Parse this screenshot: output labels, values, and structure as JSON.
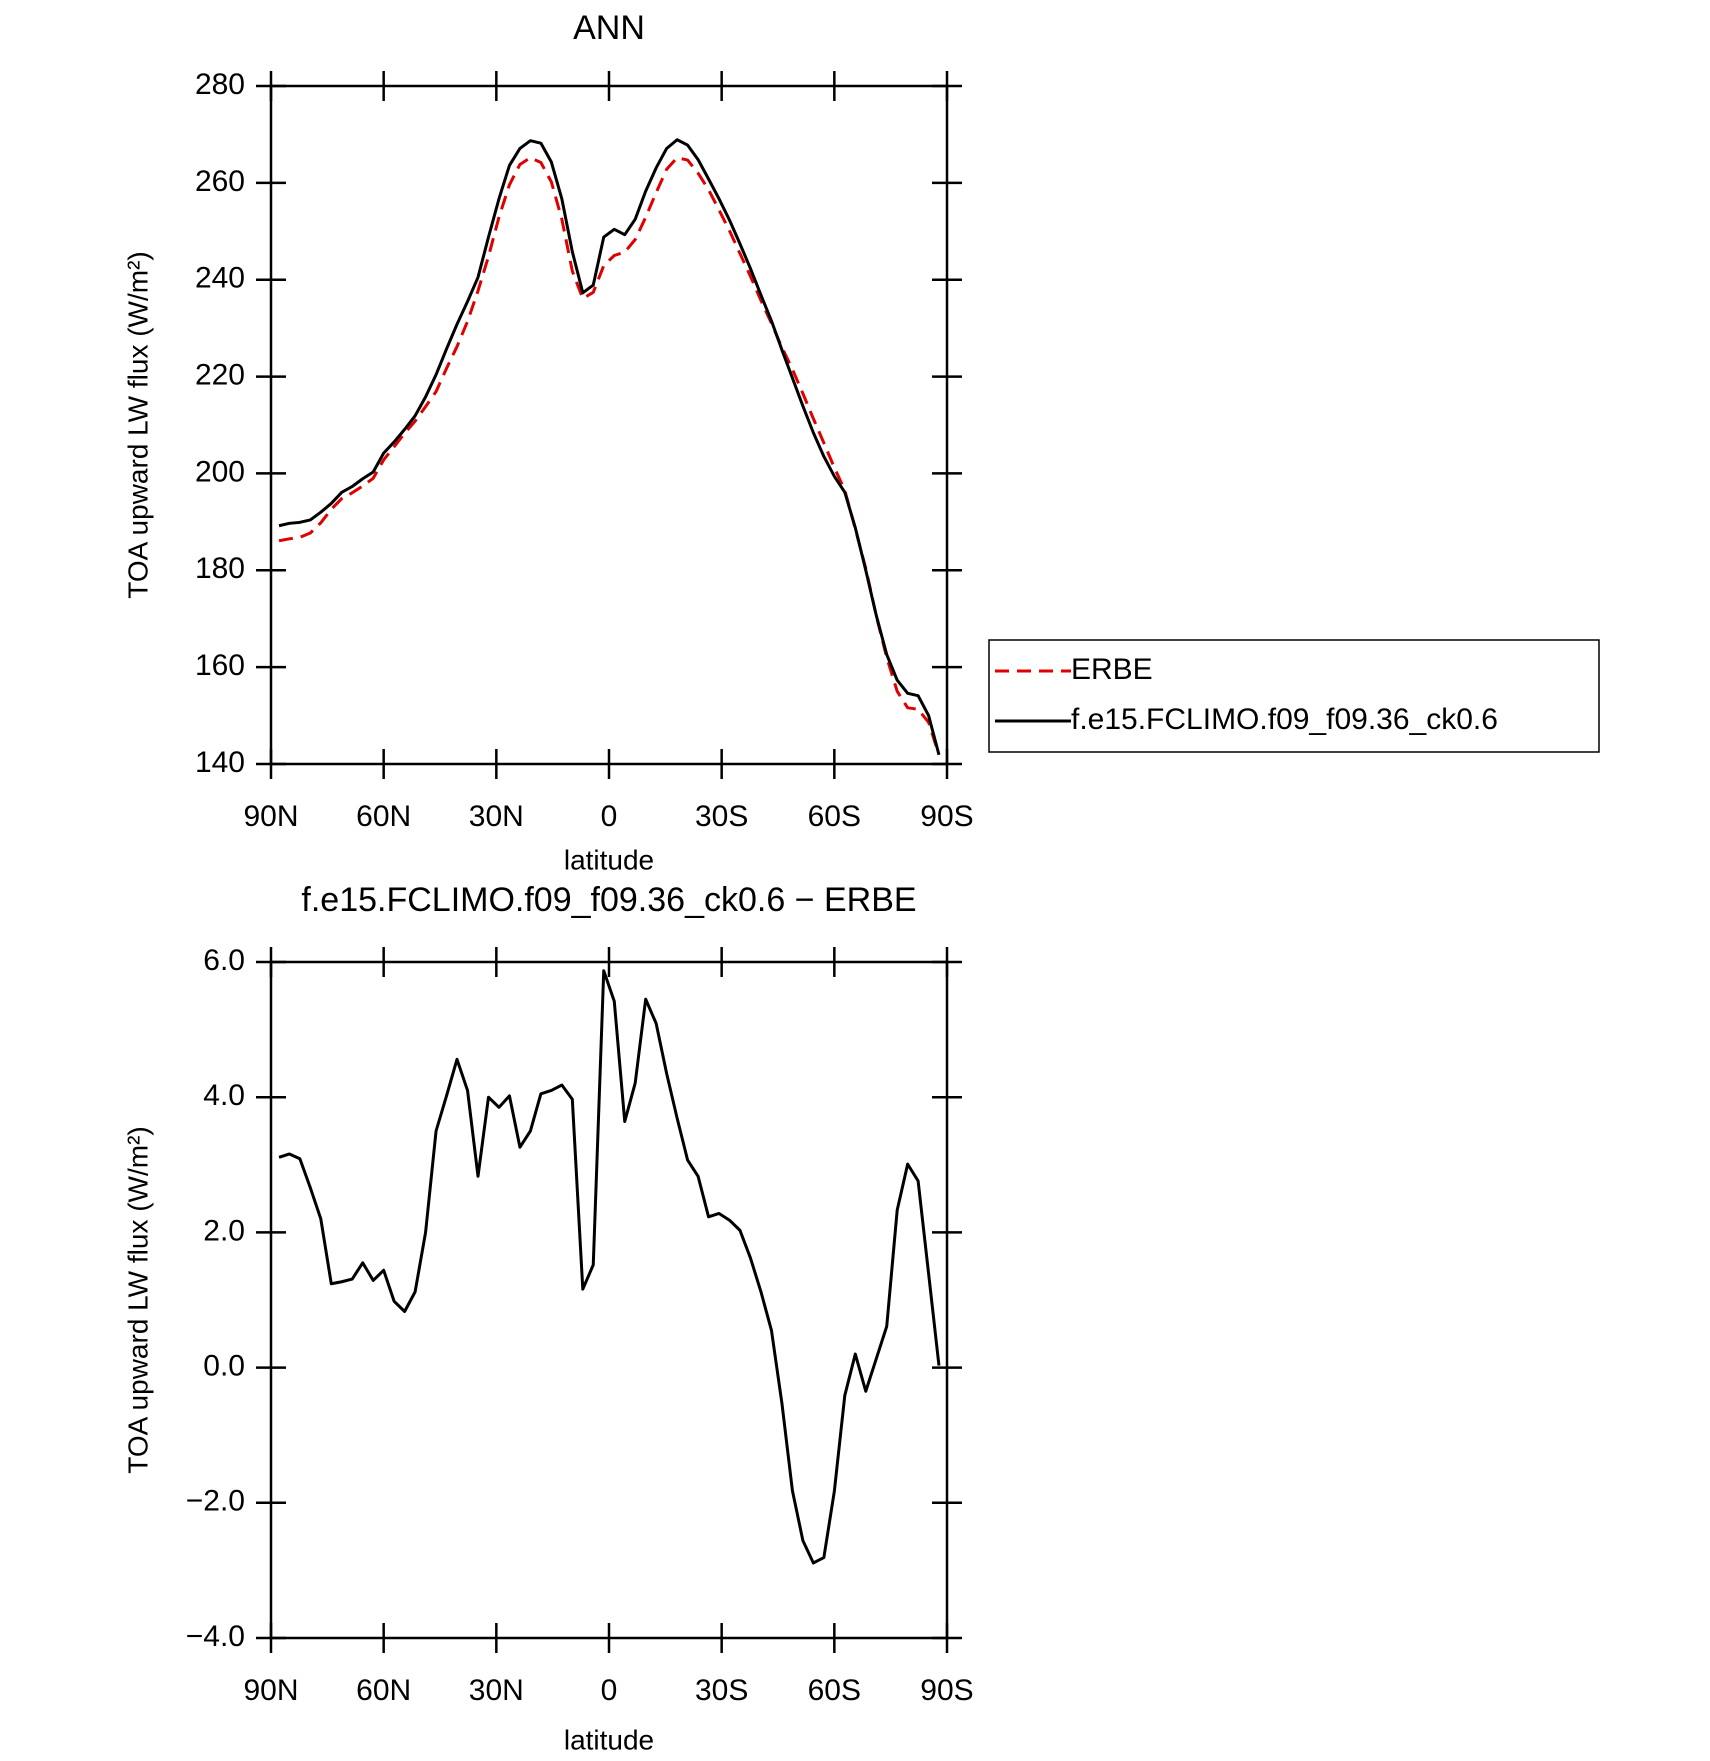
{
  "chart_data": [
    {
      "type": "line",
      "title": "ANN",
      "xlabel": "latitude",
      "ylabel": "TOA upward LW flux (W/m²)",
      "x": [
        87.86,
        85.1,
        82.31,
        79.53,
        76.74,
        73.95,
        71.16,
        68.37,
        65.58,
        62.79,
        60.0,
        57.21,
        54.42,
        51.63,
        48.84,
        46.05,
        43.26,
        40.47,
        37.67,
        34.88,
        32.09,
        29.3,
        26.51,
        23.72,
        20.93,
        18.14,
        15.35,
        12.56,
        9.77,
        6.98,
        4.19,
        1.4,
        -1.4,
        -4.19,
        -6.98,
        -9.77,
        -12.56,
        -15.35,
        -18.14,
        -20.93,
        -23.72,
        -26.51,
        -29.3,
        -32.09,
        -34.88,
        -37.67,
        -40.47,
        -43.26,
        -46.05,
        -48.84,
        -51.63,
        -54.42,
        -57.21,
        -60.0,
        -62.79,
        -65.58,
        -68.37,
        -71.16,
        -73.95,
        -76.74,
        -79.53,
        -82.31,
        -85.1,
        -87.86
      ],
      "series": [
        {
          "name": "ERBE",
          "color": "#e00000",
          "line_style": "dashed",
          "values": [
            186.1,
            186.5,
            186.8,
            187.7,
            189.8,
            192.6,
            194.8,
            196.0,
            197.4,
            199.0,
            202.8,
            205.5,
            208.3,
            210.8,
            213.8,
            216.9,
            221.7,
            226.2,
            231.4,
            237.7,
            244.8,
            252.9,
            259.6,
            263.8,
            265.2,
            264.2,
            260.2,
            252.5,
            241.8,
            236.1,
            237.4,
            242.9,
            245.0,
            245.7,
            248.3,
            252.9,
            258.0,
            262.8,
            265.2,
            264.7,
            262.0,
            258.6,
            254.4,
            250.1,
            245.4,
            240.7,
            235.7,
            231.0,
            226.0,
            221.5,
            216.5,
            211.3,
            206.3,
            201.2,
            196.5,
            188.6,
            180.4,
            170.6,
            162.0,
            155.0,
            151.6,
            151.3,
            148.6,
            141.9
          ]
        },
        {
          "name": "f.e15.FCLIMO.f09_f09.36_ck0.6",
          "color": "#000000",
          "line_style": "solid",
          "values": [
            189.2,
            189.7,
            189.9,
            190.4,
            192.0,
            193.8,
            196.1,
            197.3,
            198.9,
            200.3,
            204.2,
            206.5,
            209.1,
            211.9,
            215.8,
            220.4,
            225.7,
            230.8,
            235.5,
            240.5,
            248.8,
            256.7,
            263.6,
            267.1,
            268.7,
            268.2,
            264.3,
            256.7,
            245.8,
            237.3,
            238.9,
            248.8,
            250.4,
            249.3,
            252.5,
            258.3,
            263.1,
            267.1,
            268.9,
            267.8,
            264.8,
            260.8,
            256.7,
            252.3,
            247.4,
            242.3,
            236.8,
            231.5,
            225.5,
            219.7,
            213.9,
            208.4,
            203.5,
            199.4,
            196.1,
            188.8,
            180.0,
            170.7,
            162.6,
            157.3,
            154.6,
            154.1,
            150.0,
            141.9
          ]
        }
      ],
      "xlim": [
        90,
        -90
      ],
      "xticks": [
        {
          "value": 90,
          "label": "90N"
        },
        {
          "value": 60,
          "label": "60N"
        },
        {
          "value": 30,
          "label": "30N"
        },
        0,
        {
          "value": -30,
          "label": "30S"
        },
        {
          "value": -60,
          "label": "60S"
        },
        {
          "value": -90,
          "label": "90S"
        }
      ],
      "ylim": [
        140,
        280
      ],
      "yticks": [
        140,
        160,
        180,
        200,
        220,
        240,
        260,
        280
      ],
      "legend": "right"
    },
    {
      "type": "line",
      "title": "f.e15.FCLIMO.f09_f09.36_ck0.6 − ERBE",
      "xlabel": "latitude",
      "ylabel": "TOA upward LW flux (W/m²)",
      "x": [
        87.86,
        85.1,
        82.31,
        79.53,
        76.74,
        73.95,
        71.16,
        68.37,
        65.58,
        62.79,
        60.0,
        57.21,
        54.42,
        51.63,
        48.84,
        46.05,
        43.26,
        40.47,
        37.67,
        34.88,
        32.09,
        29.3,
        26.51,
        23.72,
        20.93,
        18.14,
        15.35,
        12.56,
        9.77,
        6.98,
        4.19,
        1.4,
        -1.4,
        -4.19,
        -6.98,
        -9.77,
        -12.56,
        -15.35,
        -18.14,
        -20.93,
        -23.72,
        -26.51,
        -29.3,
        -32.09,
        -34.88,
        -37.67,
        -40.47,
        -43.26,
        -46.05,
        -48.84,
        -51.63,
        -54.42,
        -57.21,
        -60.0,
        -62.79,
        -65.58,
        -68.37,
        -71.16,
        -73.95,
        -76.74,
        -79.53,
        -82.31,
        -85.1,
        -87.86
      ],
      "series": [
        {
          "color": "#000000",
          "line_style": "solid",
          "values": [
            3.11,
            3.16,
            3.09,
            2.66,
            2.2,
            1.24,
            1.27,
            1.31,
            1.55,
            1.29,
            1.44,
            0.98,
            0.83,
            1.12,
            2.0,
            3.5,
            4.02,
            4.56,
            4.1,
            2.83,
            4.0,
            3.85,
            4.02,
            3.26,
            3.5,
            4.05,
            4.1,
            4.18,
            3.97,
            1.16,
            1.52,
            5.87,
            5.42,
            3.64,
            4.21,
            5.45,
            5.09,
            4.35,
            3.69,
            3.07,
            2.83,
            2.23,
            2.28,
            2.18,
            2.03,
            1.62,
            1.12,
            0.55,
            -0.53,
            -1.82,
            -2.56,
            -2.89,
            -2.81,
            -1.83,
            -0.41,
            0.2,
            -0.35,
            0.13,
            0.61,
            2.33,
            3.01,
            2.76,
            1.39,
            0.03
          ]
        }
      ],
      "xlim": [
        90,
        -90
      ],
      "xticks": [
        {
          "value": 90,
          "label": "90N"
        },
        {
          "value": 60,
          "label": "60N"
        },
        {
          "value": 30,
          "label": "30N"
        },
        0,
        {
          "value": -30,
          "label": "30S"
        },
        {
          "value": -60,
          "label": "60S"
        },
        {
          "value": -90,
          "label": "90S"
        }
      ],
      "ylim": [
        -4,
        6
      ],
      "yticks": [
        {
          "value": -4,
          "label": "−4.0"
        },
        {
          "value": -2,
          "label": "−2.0"
        },
        {
          "value": 0,
          "label": "0.0"
        },
        {
          "value": 2,
          "label": "2.0"
        },
        {
          "value": 4,
          "label": "4.0"
        },
        {
          "value": 6,
          "label": "6.0"
        }
      ]
    }
  ]
}
